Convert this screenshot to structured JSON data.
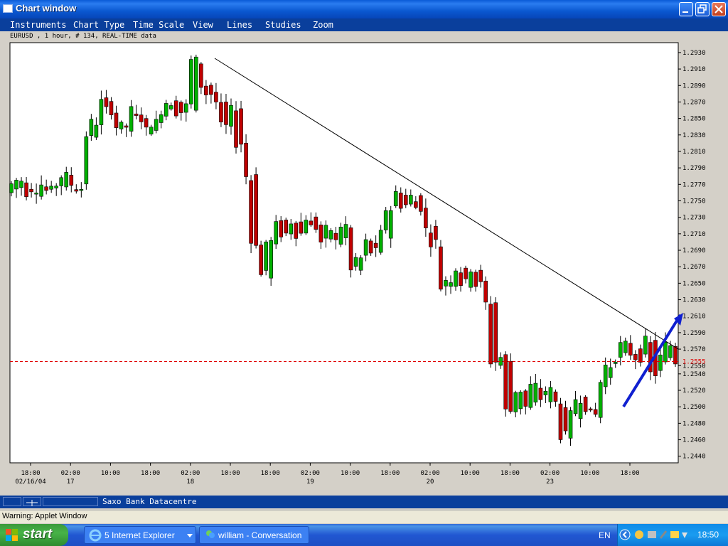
{
  "window": {
    "title": "Chart window"
  },
  "menu": {
    "items": [
      "Instruments",
      "Chart Type",
      "Time Scale",
      "View",
      "Lines",
      "Studies",
      "Zoom"
    ]
  },
  "chart_caption": "EURUSD , 1 hour, # 134, REAL-TIME data",
  "chart_data": {
    "type": "candlestick",
    "instrument": "EURUSD",
    "interval": "1 hour",
    "ylim": [
      1.2432,
      1.2942
    ],
    "y_ticks": [
      "1.2930",
      "1.2910",
      "1.2890",
      "1.2870",
      "1.2850",
      "1.2830",
      "1.2810",
      "1.2790",
      "1.2770",
      "1.2750",
      "1.2730",
      "1.2710",
      "1.2690",
      "1.2670",
      "1.2650",
      "1.2630",
      "1.2610",
      "1.2590",
      "1.2570",
      "1.2550",
      "1.2540",
      "1.2520",
      "1.2500",
      "1.2480",
      "1.2460",
      "1.2440"
    ],
    "x_ticks": [
      {
        "time": "18:00",
        "date": "02/16/04"
      },
      {
        "time": "02:00",
        "date": "17"
      },
      {
        "time": "10:00",
        "date": ""
      },
      {
        "time": "18:00",
        "date": ""
      },
      {
        "time": "02:00",
        "date": "18"
      },
      {
        "time": "10:00",
        "date": ""
      },
      {
        "time": "18:00",
        "date": ""
      },
      {
        "time": "02:00",
        "date": "19"
      },
      {
        "time": "10:00",
        "date": ""
      },
      {
        "time": "18:00",
        "date": ""
      },
      {
        "time": "02:00",
        "date": "20"
      },
      {
        "time": "10:00",
        "date": ""
      },
      {
        "time": "18:00",
        "date": ""
      },
      {
        "time": "02:00",
        "date": "23"
      },
      {
        "time": "10:00",
        "date": ""
      },
      {
        "time": "18:00",
        "date": ""
      }
    ],
    "current_price": "1.2555",
    "colors": {
      "up": "#00b000",
      "down": "#c00000",
      "trendline": "#000000",
      "price_line": "#e00000",
      "arrow": "#1020d0"
    },
    "waypoints": [
      [
        1.276,
        1.277
      ],
      [
        1.2765,
        1.2775
      ],
      [
        1.277,
        1.276
      ],
      [
        1.2762,
        1.2765
      ],
      [
        1.276,
        1.277
      ],
      [
        1.2768,
        1.2762
      ],
      [
        1.2765,
        1.277
      ],
      [
        1.277,
        1.278
      ],
      [
        1.278,
        1.277
      ],
      [
        1.2768,
        1.2765
      ],
      [
        1.2765,
        1.283
      ],
      [
        1.283,
        1.2845
      ],
      [
        1.2845,
        1.287
      ],
      [
        1.287,
        1.286
      ],
      [
        1.286,
        1.284
      ],
      [
        1.284,
        1.284
      ],
      [
        1.2835,
        1.286
      ],
      [
        1.286,
        1.285
      ],
      [
        1.2848,
        1.2835
      ],
      [
        1.2835,
        1.2845
      ],
      [
        1.2845,
        1.286
      ],
      [
        1.2858,
        1.287
      ],
      [
        1.287,
        1.2858
      ],
      [
        1.2858,
        1.2865
      ],
      [
        1.2865,
        1.292
      ],
      [
        1.292,
        1.289
      ],
      [
        1.289,
        1.288
      ],
      [
        1.288,
        1.287
      ],
      [
        1.287,
        1.284
      ],
      [
        1.284,
        1.286
      ],
      [
        1.286,
        1.282
      ],
      [
        1.282,
        1.278
      ],
      [
        1.278,
        1.27
      ],
      [
        1.27,
        1.266
      ],
      [
        1.266,
        1.27
      ],
      [
        1.27,
        1.272
      ],
      [
        1.2722,
        1.271
      ],
      [
        1.271,
        1.2725
      ],
      [
        1.2725,
        1.271
      ],
      [
        1.2712,
        1.273
      ],
      [
        1.273,
        1.2718
      ],
      [
        1.2718,
        1.27
      ],
      [
        1.27,
        1.2715
      ],
      [
        1.2715,
        1.27
      ],
      [
        1.27,
        1.272
      ],
      [
        1.272,
        1.2665
      ],
      [
        1.2665,
        1.268
      ],
      [
        1.268,
        1.27
      ],
      [
        1.27,
        1.2688
      ],
      [
        1.2688,
        1.271
      ],
      [
        1.271,
        1.274
      ],
      [
        1.274,
        1.276
      ],
      [
        1.276,
        1.2745
      ],
      [
        1.2745,
        1.2755
      ],
      [
        1.2755,
        1.2742
      ],
      [
        1.2742,
        1.2715
      ],
      [
        1.2715,
        1.27
      ],
      [
        1.27,
        1.2645
      ],
      [
        1.2645,
        1.2655
      ],
      [
        1.2652,
        1.2668
      ],
      [
        1.2668,
        1.265
      ],
      [
        1.265,
        1.2668
      ],
      [
        1.2668,
        1.2648
      ],
      [
        1.2648,
        1.2625
      ],
      [
        1.2625,
        1.2555
      ],
      [
        1.2555,
        1.256
      ],
      [
        1.256,
        1.2495
      ],
      [
        1.2495,
        1.252
      ],
      [
        1.252,
        1.25
      ],
      [
        1.25,
        1.2525
      ],
      [
        1.2525,
        1.251
      ],
      [
        1.251,
        1.252
      ],
      [
        1.252,
        1.2505
      ],
      [
        1.2505,
        1.2465
      ],
      [
        1.2465,
        1.249
      ],
      [
        1.249,
        1.251
      ],
      [
        1.251,
        1.25
      ],
      [
        1.25,
        1.249
      ],
      [
        1.249,
        1.253
      ],
      [
        1.253,
        1.255
      ],
      [
        1.255,
        1.256
      ],
      [
        1.256,
        1.2575
      ],
      [
        1.2575,
        1.2565
      ],
      [
        1.2565,
        1.256
      ],
      [
        1.256,
        1.258
      ],
      [
        1.258,
        1.254
      ],
      [
        1.254,
        1.256
      ],
      [
        1.256,
        1.2575
      ],
      [
        1.2575,
        1.2555
      ]
    ]
  },
  "status": {
    "datacentre": "Saxo Bank Datacentre",
    "warning": "Warning: Applet Window"
  },
  "taskbar": {
    "start_label": "start",
    "tasks": [
      "5 Internet Explorer",
      "william - Conversation"
    ],
    "language": "EN",
    "clock": "18:50"
  }
}
